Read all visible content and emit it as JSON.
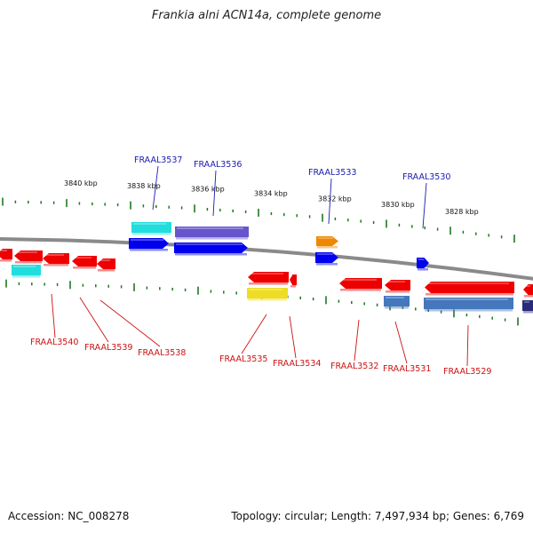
{
  "title": "Frankia alni ACN14a, complete genome",
  "footer": {
    "accession": "Accession: NC_008278",
    "summary": "Topology: circular; Length: 7,497,934 bp; Genes: 6,769"
  },
  "colors": {
    "backbone": "#8a8a8a",
    "tick": "#1e7a1e",
    "label_top": "#1a1ab0",
    "label_bottom": "#cc1111"
  },
  "kbp_labels": [
    "3840 kbp",
    "3838 kbp",
    "3836 kbp",
    "3834 kbp",
    "3832 kbp",
    "3830 kbp",
    "3828 kbp"
  ],
  "genes_top": [
    {
      "name": "FRAAL3537",
      "color": "#0000ee",
      "direction": "right",
      "extra_color": "#22dddd"
    },
    {
      "name": "FRAAL3536",
      "color": "#0000ee",
      "direction": "right",
      "extra_color": "#6655cc"
    },
    {
      "name": "FRAAL3533",
      "color": "#0000ee",
      "direction": "right",
      "extra_color": "#ee8800"
    },
    {
      "name": "FRAAL3530",
      "color": "#0000ee",
      "direction": "right",
      "extra_color": ""
    }
  ],
  "genes_bottom": [
    {
      "name": "FRAAL3540",
      "color": "#ee0000",
      "direction": "left",
      "extra_color": "#22dddd"
    },
    {
      "name": "FRAAL3539",
      "color": "#ee0000",
      "direction": "left",
      "extra_color": ""
    },
    {
      "name": "FRAAL3538",
      "color": "#ee0000",
      "direction": "left",
      "extra_color": ""
    },
    {
      "name": "FRAAL3535",
      "color": "#ee0000",
      "direction": "left",
      "extra_color": "#eedd22"
    },
    {
      "name": "FRAAL3534",
      "color": "#ee0000",
      "direction": "left",
      "extra_color": ""
    },
    {
      "name": "FRAAL3532",
      "color": "#ee0000",
      "direction": "left",
      "extra_color": ""
    },
    {
      "name": "FRAAL3531",
      "color": "#ee0000",
      "direction": "left",
      "extra_color": "#4477bb"
    },
    {
      "name": "FRAAL3529",
      "color": "#ee0000",
      "direction": "left",
      "extra_color": "#4477bb"
    }
  ]
}
